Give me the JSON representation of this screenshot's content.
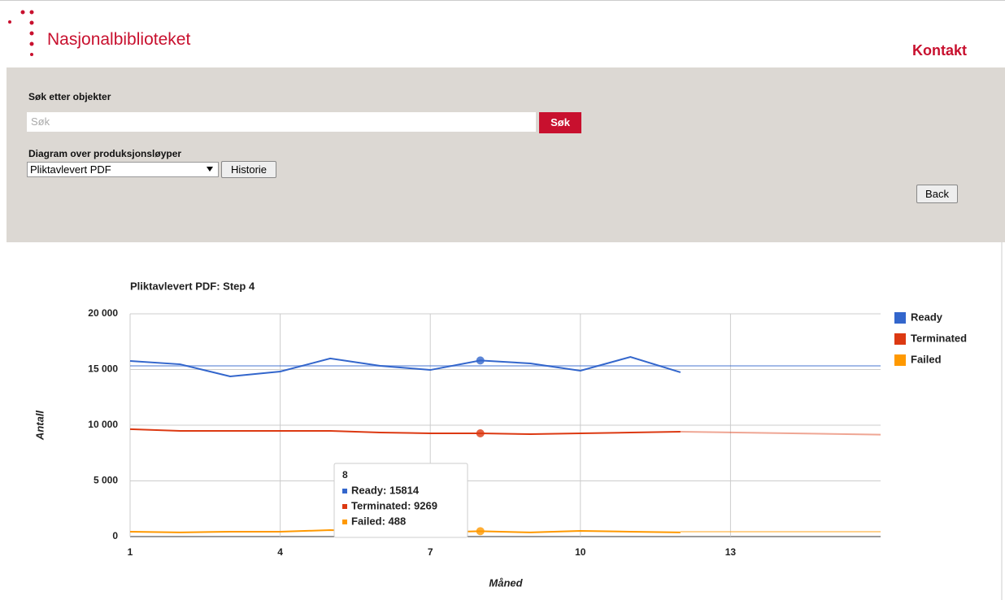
{
  "header": {
    "logo": "Nasjonalbiblioteket",
    "contact": "Kontakt"
  },
  "search": {
    "label": "Søk etter objekter",
    "placeholder": "Søk",
    "button": "Søk"
  },
  "diagram": {
    "label": "Diagram over produksjonsløyper",
    "selected": "Pliktavlevert PDF",
    "history_button": "Historie",
    "back_button": "Back"
  },
  "chart_data": {
    "type": "line",
    "title": "Pliktavlevert PDF: Step 4",
    "x_label": "Måned",
    "y_label": "Antall",
    "x": [
      1,
      2,
      3,
      4,
      5,
      6,
      7,
      8,
      9,
      10,
      11,
      12
    ],
    "xlim": [
      1,
      16
    ],
    "xticks": [
      1,
      4,
      7,
      10,
      13
    ],
    "ylim": [
      0,
      20000
    ],
    "yticks": [
      {
        "value": 0,
        "label": "0"
      },
      {
        "value": 5000,
        "label": "5 000"
      },
      {
        "value": 10000,
        "label": "10 000"
      },
      {
        "value": 15000,
        "label": "15 000"
      },
      {
        "value": 20000,
        "label": "20 000"
      }
    ],
    "grid": true,
    "legend": "right",
    "series": [
      {
        "name": "Ready",
        "color": "#3366cc",
        "values": [
          15770,
          15470,
          14380,
          14820,
          15990,
          15330,
          14960,
          15814,
          15550,
          14890,
          16130,
          14750
        ],
        "trend": {
          "x": [
            1,
            16
          ],
          "values": [
            15330,
            15330
          ]
        }
      },
      {
        "name": "Terminated",
        "color": "#dc3912",
        "values": [
          9640,
          9490,
          9490,
          9490,
          9490,
          9340,
          9270,
          9269,
          9200,
          9270,
          9340,
          9420
        ],
        "trend": {
          "x": [
            12,
            16
          ],
          "values": [
            9420,
            9150
          ]
        }
      },
      {
        "name": "Failed",
        "color": "#ff9900",
        "values": [
          440,
          370,
          440,
          440,
          580,
          440,
          370,
          488,
          370,
          510,
          440,
          370
        ],
        "trend": {
          "x": [
            12,
            16
          ],
          "values": [
            440,
            440
          ]
        }
      }
    ],
    "tooltip": {
      "title": "8",
      "items": [
        "Ready: 15814",
        "Terminated: 9269",
        "Failed: 488"
      ]
    }
  }
}
